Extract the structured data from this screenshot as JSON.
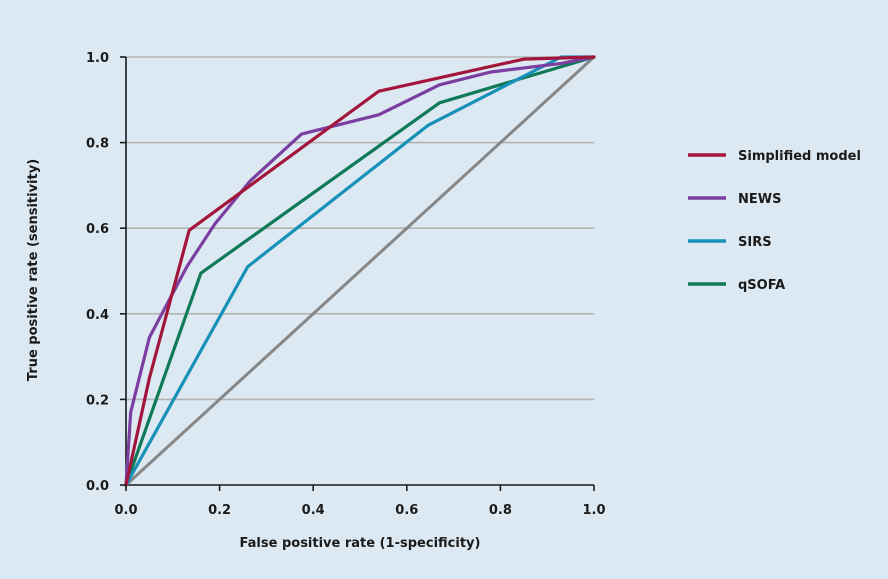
{
  "chart_data": {
    "type": "line",
    "title": "",
    "xlabel": "False positive rate (1-specificity)",
    "ylabel": "True positive rate (sensitivity)",
    "xlim": [
      0,
      1
    ],
    "ylim": [
      0,
      1
    ],
    "xticks": [
      "0.0",
      "0.2",
      "0.4",
      "0.6",
      "0.8",
      "1.0"
    ],
    "yticks": [
      "0.0",
      "0.2",
      "0.4",
      "0.6",
      "0.8",
      "1.0"
    ],
    "grid": "horizontal",
    "legend_position": "right",
    "reference_line": {
      "x": [
        0,
        1
      ],
      "y": [
        0,
        1
      ],
      "color": "#878787"
    },
    "series": [
      {
        "name": "Simplified model",
        "color": "#a3163c",
        "x": [
          0,
          0.05,
          0.135,
          0.54,
          0.85,
          1.0
        ],
        "y": [
          0,
          0.25,
          0.595,
          0.92,
          0.995,
          1.0
        ]
      },
      {
        "name": "NEWS",
        "color": "#7a3fa0",
        "x": [
          0,
          0.01,
          0.05,
          0.13,
          0.19,
          0.265,
          0.375,
          0.54,
          0.67,
          0.78,
          0.93,
          1.0
        ],
        "y": [
          0,
          0.17,
          0.345,
          0.51,
          0.61,
          0.71,
          0.82,
          0.865,
          0.935,
          0.965,
          0.985,
          1.0
        ]
      },
      {
        "name": "SIRS",
        "color": "#1791b8",
        "x": [
          0,
          0.26,
          0.645,
          0.93,
          1.0
        ],
        "y": [
          0,
          0.51,
          0.84,
          1.0,
          1.0
        ]
      },
      {
        "name": "qSOFA",
        "color": "#0f7a57",
        "x": [
          0,
          0.16,
          0.67,
          1.0
        ],
        "y": [
          0,
          0.495,
          0.893,
          1.0
        ]
      }
    ]
  }
}
